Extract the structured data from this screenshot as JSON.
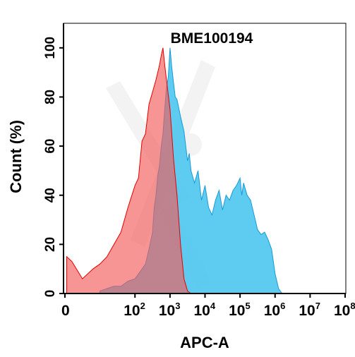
{
  "chart_data": {
    "type": "area",
    "title": "BME100194",
    "xlabel": "APC-A",
    "ylabel": "Count (%)",
    "x_scale": "log",
    "xlim": [
      0,
      8
    ],
    "ylim": [
      0,
      110
    ],
    "x_ticks": [
      {
        "value": 0,
        "base": "0",
        "exp": ""
      },
      {
        "value": 2,
        "base": "10",
        "exp": "2"
      },
      {
        "value": 3,
        "base": "10",
        "exp": "3"
      },
      {
        "value": 4,
        "base": "10",
        "exp": "4"
      },
      {
        "value": 5,
        "base": "10",
        "exp": "5"
      },
      {
        "value": 6,
        "base": "10",
        "exp": "6"
      },
      {
        "value": 7,
        "base": "10",
        "exp": "7"
      },
      {
        "value": 8,
        "base": "10",
        "exp": "8"
      }
    ],
    "y_ticks": [
      "0",
      "20",
      "40",
      "60",
      "80",
      "100"
    ],
    "grid": false,
    "legend": "none",
    "series": [
      {
        "color": "#4cc6ee",
        "edge": "#1a9ad6",
        "x": [
          1.0,
          1.2,
          1.4,
          1.6,
          1.8,
          2.0,
          2.2,
          2.3,
          2.4,
          2.5,
          2.55,
          2.6,
          2.65,
          2.7,
          2.75,
          2.8,
          2.85,
          2.9,
          2.95,
          3.0,
          3.05,
          3.1,
          3.15,
          3.2,
          3.3,
          3.4,
          3.5,
          3.55,
          3.6,
          3.7,
          3.8,
          3.9,
          4.0,
          4.1,
          4.2,
          4.3,
          4.4,
          4.5,
          4.6,
          4.7,
          4.8,
          4.9,
          5.0,
          5.05,
          5.1,
          5.2,
          5.3,
          5.4,
          5.5,
          5.6,
          5.7,
          5.8,
          5.9,
          6.0,
          6.1,
          6.2,
          8.0
        ],
        "y": [
          1,
          2,
          3,
          3,
          5,
          6,
          10,
          12,
          18,
          25,
          35,
          40,
          48,
          52,
          60,
          65,
          75,
          84,
          88,
          100,
          92,
          86,
          80,
          79,
          72,
          66,
          54,
          57,
          50,
          45,
          50,
          38,
          44,
          35,
          32,
          38,
          42,
          34,
          40,
          38,
          42,
          44,
          47,
          40,
          45,
          40,
          38,
          32,
          26,
          24,
          25,
          22,
          18,
          8,
          2,
          0,
          0
        ]
      },
      {
        "color": "#f25a5a",
        "edge": "#e60000",
        "x": [
          0.05,
          0.2,
          0.5,
          0.8,
          1.0,
          1.2,
          1.4,
          1.6,
          1.8,
          2.0,
          2.1,
          2.2,
          2.3,
          2.4,
          2.5,
          2.6,
          2.7,
          2.75,
          2.8,
          2.85,
          2.9,
          3.0,
          3.05,
          3.1,
          3.2,
          3.3,
          3.4,
          3.5,
          3.6,
          3.7,
          3.8
        ],
        "y": [
          15,
          13,
          6,
          10,
          12,
          15,
          20,
          25,
          35,
          44,
          47,
          62,
          65,
          77,
          82,
          87,
          93,
          97,
          100,
          93,
          87,
          75,
          65,
          55,
          40,
          20,
          6,
          1,
          0,
          0,
          0
        ]
      }
    ]
  }
}
